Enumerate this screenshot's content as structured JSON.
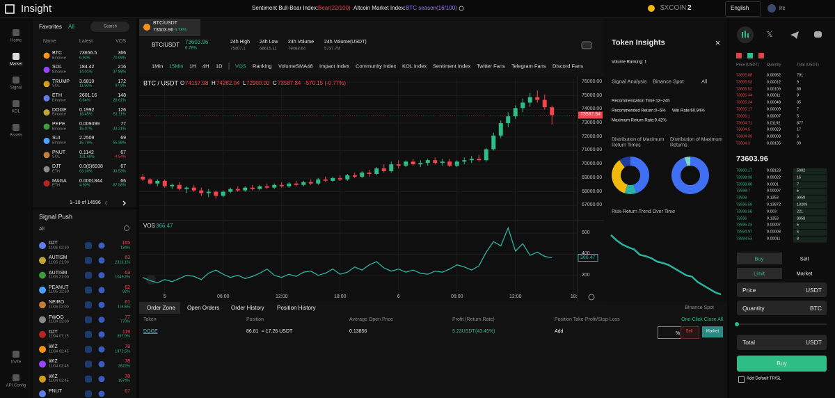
{
  "top_bar": {
    "brand": "Insight",
    "sentiment_label": "Sentiment Bull-Bear Index:",
    "sentiment_value": "Bear(22/100)",
    "altcoin_label": "Altcoin Market Index:",
    "altcoin_value": "BTC season(16/100)",
    "token": "$XCOIN",
    "token_count": "2",
    "language": "English",
    "user": "irc"
  },
  "nav": [
    "Home",
    "Market",
    "Signal",
    "KOL",
    "Assets",
    "Invite",
    "API Config"
  ],
  "favorites": {
    "title": "Favorites",
    "filter": "All",
    "search": "Search",
    "columns": [
      "Name",
      "Latest",
      "VOS"
    ],
    "rows": [
      [
        "BTC",
        "Binance",
        "73656.5",
        "6.93%",
        "366",
        "70.09%"
      ],
      [
        "SOL",
        "Binance",
        "184.42",
        "14.01%",
        "216",
        "37.88%"
      ],
      [
        "TRUMP",
        "SOL",
        "3.6810",
        "11.50%",
        "172",
        "97.9%"
      ],
      [
        "ETH",
        "Binance",
        "2601.16",
        "6.64%",
        "148",
        "28.61%"
      ],
      [
        "DOGE",
        "Binance",
        "0.1992",
        "18.45%",
        "126",
        "51.11%"
      ],
      [
        "PEPE",
        "Binance",
        "0.009399",
        "15.07%",
        "77",
        "33.21%"
      ],
      [
        "SUI",
        "Binance",
        "2.2509",
        "16.70%",
        "69",
        "55.38%"
      ],
      [
        "PNUT",
        "SOL",
        "0.1142",
        "131.68%",
        "67",
        "-4.54%"
      ],
      [
        "DJT",
        "ETH",
        "0.0(6)6938",
        "63.20%",
        "67",
        "33.53%"
      ],
      [
        "MAGA",
        "ETH",
        "0.0001844",
        "4.60%",
        "66",
        "87.56%"
      ]
    ],
    "pagination": "1–10 of 14596"
  },
  "signal_push": {
    "title": "Signal Push",
    "filter": "All",
    "rows": [
      {
        "name": "DJT",
        "time": "11/06 02:30",
        "vos": "165",
        "pct": "134%"
      },
      {
        "name": "AUTISM",
        "time": "11/05 21:00",
        "vos": "63",
        "pct": "2316.1%"
      },
      {
        "name": "AUTISM",
        "time": "11/05 21:00",
        "vos": "63",
        "pct": "1049.2%"
      },
      {
        "name": "PEANUT",
        "time": "11/05 12:30",
        "vos": "62",
        "pct": "92%"
      },
      {
        "name": "NEIRO",
        "time": "11/05 02:00",
        "vos": "61",
        "pct": "115.5%"
      },
      {
        "name": "FWOG",
        "time": "11/04 22:00",
        "vos": "77",
        "pct": "770%"
      },
      {
        "name": "DJT",
        "time": "11/04 07:15",
        "vos": "119",
        "pct": "397.9%"
      },
      {
        "name": "WIZ",
        "time": "11/04 02:45",
        "vos": "78",
        "pct": "1972.5%"
      },
      {
        "name": "WIZ",
        "time": "11/04 02:45",
        "vos": "78",
        "pct": "2622%"
      },
      {
        "name": "WIZ",
        "time": "11/04 02:45",
        "vos": "78",
        "pct": "1974%"
      },
      {
        "name": "PNUT",
        "vos": "67"
      }
    ]
  },
  "ticker_tab": {
    "pair": "BTC/USDT",
    "price": "73603.96",
    "change": "6.78%"
  },
  "header": {
    "pair": "BTC/USDT",
    "price": "73603.96",
    "change": "6.78%",
    "stats": [
      [
        "24h High",
        "75407.1"
      ],
      [
        "24h Low",
        "66615.11"
      ],
      [
        "24h Volume",
        "79468.64"
      ],
      [
        "24h Volume(USDT)",
        "5737.7M"
      ]
    ]
  },
  "intervals": [
    "1Min",
    "15Min",
    "1H",
    "4H",
    "1D"
  ],
  "active_interval": 1,
  "indicators": [
    "VOS",
    "Ranking",
    "VolumeSMA48",
    "Impact Index",
    "Community Index",
    "KOL Index",
    "Sentiment Index",
    "Twitter Fans",
    "Telegram Fans",
    "Discord Fans"
  ],
  "active_indicator": 0,
  "price_chart": {
    "type": "candlestick",
    "pair": "BTC / USDT",
    "ohlc": [
      {
        "label": "O",
        "value": "74157.98"
      },
      {
        "label": "H",
        "value": "74282.04"
      },
      {
        "label": "L",
        "value": "72900.00"
      },
      {
        "label": "C",
        "value": "73587.84"
      }
    ],
    "change": "-570.15 (-0.77%)",
    "up_color": "#2ebd85",
    "down_color": "#f0444f",
    "candles": [
      [
        69100,
        69300,
        68800,
        68900
      ],
      [
        68900,
        69000,
        68500,
        68600
      ],
      [
        68600,
        68900,
        68400,
        68800
      ],
      [
        68800,
        68900,
        68300,
        68400
      ],
      [
        68400,
        68600,
        68200,
        68500
      ],
      [
        68500,
        68700,
        68100,
        68200
      ],
      [
        68200,
        68400,
        67900,
        68300
      ],
      [
        68300,
        68500,
        68000,
        68100
      ],
      [
        68100,
        68300,
        67700,
        67900
      ],
      [
        67900,
        68200,
        67600,
        68000
      ],
      [
        68000,
        68100,
        67500,
        67700
      ],
      [
        67700,
        68100,
        67600,
        68000
      ],
      [
        68000,
        68300,
        67900,
        68200
      ],
      [
        68200,
        68400,
        68000,
        68100
      ],
      [
        68100,
        68400,
        68000,
        68300
      ],
      [
        68300,
        68500,
        68100,
        68200
      ],
      [
        68200,
        68500,
        68100,
        68400
      ],
      [
        68400,
        68600,
        68200,
        68300
      ],
      [
        68300,
        68600,
        68200,
        68500
      ],
      [
        68500,
        68700,
        68300,
        68400
      ],
      [
        68400,
        68700,
        68300,
        68600
      ],
      [
        68600,
        68800,
        68400,
        68500
      ],
      [
        68500,
        68800,
        68400,
        68700
      ],
      [
        68700,
        68900,
        68500,
        68600
      ],
      [
        68600,
        69000,
        68500,
        68900
      ],
      [
        68900,
        69100,
        68700,
        68800
      ],
      [
        68800,
        69100,
        68700,
        69000
      ],
      [
        69000,
        69200,
        68800,
        68900
      ],
      [
        68900,
        69300,
        68800,
        69200
      ],
      [
        69200,
        69400,
        69000,
        69100
      ],
      [
        69100,
        69500,
        69000,
        69400
      ],
      [
        69400,
        69600,
        69100,
        69300
      ],
      [
        69300,
        69800,
        69200,
        69700
      ],
      [
        69700,
        70000,
        69400,
        69500
      ],
      [
        69500,
        70200,
        69400,
        70000
      ],
      [
        70000,
        70300,
        69700,
        69900
      ],
      [
        69900,
        70300,
        69800,
        70200
      ],
      [
        70200,
        70400,
        69900,
        70000
      ],
      [
        70000,
        70300,
        69800,
        70100
      ],
      [
        70100,
        70400,
        69900,
        70300
      ],
      [
        70300,
        70500,
        70000,
        70100
      ],
      [
        70100,
        70400,
        69900,
        70200
      ],
      [
        70200,
        70400,
        69800,
        69900
      ],
      [
        69900,
        70300,
        69800,
        70200
      ],
      [
        70200,
        70500,
        70000,
        70300
      ],
      [
        70300,
        70600,
        70100,
        70400
      ],
      [
        70400,
        70700,
        70200,
        70300
      ],
      [
        70300,
        71200,
        70200,
        71100
      ],
      [
        71100,
        72300,
        71000,
        72100
      ],
      [
        72100,
        73200,
        71900,
        73000
      ],
      [
        73000,
        73800,
        72700,
        73500
      ],
      [
        73500,
        74300,
        73300,
        74100
      ],
      [
        74100,
        74800,
        73800,
        74500
      ],
      [
        74500,
        75200,
        74200,
        74900
      ],
      [
        74900,
        75400,
        74500,
        74700
      ],
      [
        74700,
        75100,
        74000,
        74157.98
      ],
      [
        74157.98,
        74282.04,
        72900,
        73587.84
      ]
    ],
    "xlim": [
      -0.5,
      59.5
    ],
    "xticks": [
      {
        "value": 3,
        "label": "5"
      },
      {
        "value": 11,
        "label": "06:00"
      },
      {
        "value": 19,
        "label": "12:00"
      },
      {
        "value": 27,
        "label": "18:00"
      },
      {
        "value": 35,
        "label": "6"
      },
      {
        "value": 43,
        "label": "06:00"
      },
      {
        "value": 51,
        "label": "12:00"
      },
      {
        "value": 59,
        "label": "18:"
      }
    ],
    "ylim": [
      66000,
      76250
    ],
    "yticks": [
      {
        "value": 67000,
        "label": "67000.00"
      },
      {
        "value": 68000,
        "label": "68000.00"
      },
      {
        "value": 69000,
        "label": "69000.00"
      },
      {
        "value": 70000,
        "label": "70000.00"
      },
      {
        "value": 71000,
        "label": "71000.00"
      },
      {
        "value": 72000,
        "label": "72000.00"
      },
      {
        "value": 73000,
        "label": "73000.00"
      },
      {
        "value": 74000,
        "label": "74000.00"
      },
      {
        "value": 75000,
        "label": "75000.00"
      },
      {
        "value": 76000,
        "label": "76000.00"
      }
    ],
    "volume_name": "VOS",
    "volume_color": "#2bb5a0",
    "volume": [
      180,
      150,
      130,
      160,
      140,
      170,
      200,
      190,
      160,
      220,
      250,
      210,
      180,
      200,
      170,
      190,
      220,
      260,
      200,
      180,
      210,
      190,
      230,
      240,
      200,
      220,
      260,
      210,
      230,
      280,
      250,
      300,
      330,
      270,
      240,
      260,
      230,
      250,
      220,
      210,
      240,
      230,
      260,
      300,
      280,
      250,
      290,
      420,
      520,
      480,
      650,
      430,
      500,
      390,
      420,
      380,
      366.47
    ],
    "y2lim": [
      0,
      700
    ],
    "y2ticks": [
      200,
      400,
      600
    ],
    "grid": true
  },
  "order_zone": {
    "tabs": [
      "Order Zone",
      "Open Orders",
      "Order History",
      "Position History"
    ],
    "market": "Binance Spot",
    "columns": [
      "Token",
      "Position",
      "Average Open Price",
      "Profit (Return Rate)",
      "Position Take-Profit/Stop-Loss"
    ],
    "close_all": "One-Click Close All",
    "row": {
      "token": "DOGE",
      "position": "86.81",
      "position_value": "≈ 17.26 USDT",
      "avg_price": "0.13856",
      "profit": "5.23USDT",
      "return_rate": "(43.45%)",
      "tpsl": "Add",
      "unit": "%",
      "sell": "Sell",
      "market": "Market"
    }
  },
  "token_insights": {
    "title": "Token Insights",
    "volume_ranking": "Volume Ranking: 1",
    "signal_analysis": "Signal Analysis",
    "market": "Binance Spot",
    "filter": "All",
    "recommendation_time": "Recommendation Time:12~24h",
    "recommended_return": "Recommended Return:0~5%",
    "win_rate": "Win Rate:60.94%",
    "max_return_rate": "Maximum Return Rate:9.42%",
    "dist_times": {
      "title": "Distribution of Maximum Return Times",
      "values": [
        45,
        10,
        35,
        10
      ],
      "colors": [
        "#3f6ff2",
        "#28b4a4",
        "#f0b90b",
        "#1f3b9c"
      ]
    },
    "dist_returns": {
      "title": "Distribution of Maximum Returns",
      "values": [
        95,
        5
      ],
      "colors": [
        "#3f6ff2",
        "#7fd3c8"
      ]
    },
    "trend": {
      "title": "Risk-Return Trend Over Time",
      "values": [
        9,
        8.2,
        7.6,
        7.2,
        6.9,
        6.1,
        5.9,
        5.6,
        5.1,
        4.9,
        4.6,
        4.1,
        3.6,
        3.1,
        2.9,
        2.1,
        1.6,
        1.1,
        0.6,
        0.3
      ],
      "ylim": [
        0,
        10
      ],
      "color": "#2bb5a0"
    }
  },
  "order_book": {
    "columns": [
      "Price (USDT)",
      "Quantity",
      "Total (USDT)"
    ],
    "asks": [
      [
        "73605.88",
        "0.00952",
        "701"
      ],
      [
        "73605.53",
        "0.00012",
        "9"
      ],
      [
        "73605.52",
        "0.00109",
        "80"
      ],
      [
        "73605.44",
        "0.00011",
        "8"
      ],
      [
        "73605.34",
        "0.00048",
        "35"
      ],
      [
        "73605.17",
        "0.00009",
        "7"
      ],
      [
        "73605.1",
        "0.00007",
        "5"
      ],
      [
        "73604.71",
        "0.01192",
        "877"
      ],
      [
        "73604.5",
        "0.00023",
        "17"
      ],
      [
        "73604.39",
        "0.00008",
        "6"
      ],
      [
        "73604.3",
        "0.00135",
        "99"
      ]
    ],
    "mid_price": "73603.96",
    "bids": [
      [
        "73600.17",
        "0.08128",
        "5982"
      ],
      [
        "73598.99",
        "0.00022",
        "16"
      ],
      [
        "73598.88",
        "0.0001",
        "7"
      ],
      [
        "73598.7",
        "0.00007",
        "5"
      ],
      [
        "73598",
        "0.1353",
        "9958"
      ],
      [
        "73596.59",
        "0.13872",
        "10209"
      ],
      [
        "73596.58",
        "0.003",
        "221"
      ],
      [
        "73596",
        "0.1353",
        "9958"
      ],
      [
        "73595.23",
        "0.00007",
        "5"
      ],
      [
        "73594.97",
        "0.00008",
        "6"
      ],
      [
        "73594.53",
        "0.00011",
        "8"
      ]
    ]
  },
  "trade_panel": {
    "buy_tab": "Buy",
    "sell_tab": "Sell",
    "limit": "Limit",
    "market": "Market",
    "price": "Price",
    "price_unit": "USDT",
    "quantity": "Quantity",
    "quantity_unit": "BTC",
    "total": "Total",
    "total_unit": "USDT",
    "submit": "Buy",
    "tpsl": "Add Default TP/SL"
  }
}
